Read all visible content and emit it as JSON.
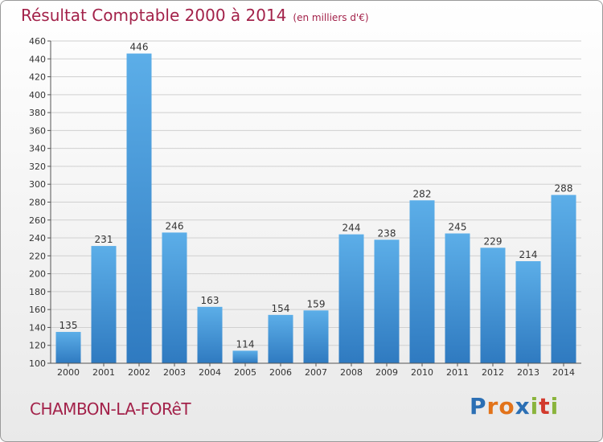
{
  "header": {
    "title": "Résultat Comptable 2000 à 2014",
    "subtitle": "(en milliers d'€)"
  },
  "footer": {
    "commune": "CHAMBON-LA-FORêT",
    "logo_letters": [
      "P",
      "r",
      "o",
      "x",
      "i",
      "t",
      "i"
    ],
    "logo_colors": [
      "#2b6fb4",
      "#e2731a",
      "#e2731a",
      "#2b6fb4",
      "#8ab43c",
      "#d23a2d",
      "#8ab43c"
    ]
  },
  "chart_data": {
    "type": "bar",
    "title": "Résultat Comptable 2000 à 2014",
    "subtitle": "(en milliers d'€)",
    "categories": [
      "2000",
      "2001",
      "2002",
      "2003",
      "2004",
      "2005",
      "2006",
      "2007",
      "2008",
      "2009",
      "2010",
      "2011",
      "2012",
      "2013",
      "2014"
    ],
    "values": [
      135,
      231,
      446,
      246,
      163,
      114,
      154,
      159,
      244,
      238,
      282,
      245,
      229,
      214,
      288
    ],
    "ylim": [
      100,
      460
    ],
    "yticks": [
      100,
      120,
      140,
      160,
      180,
      200,
      220,
      240,
      260,
      280,
      300,
      320,
      340,
      360,
      380,
      400,
      420,
      440,
      460
    ],
    "grid": true,
    "xlabel": "",
    "ylabel": "",
    "colors": {
      "bar_top": "#5caee8",
      "bar_bottom": "#2f7ac0",
      "grid": "#d0d0d0",
      "axis": "#555555",
      "text": "#333333"
    }
  }
}
